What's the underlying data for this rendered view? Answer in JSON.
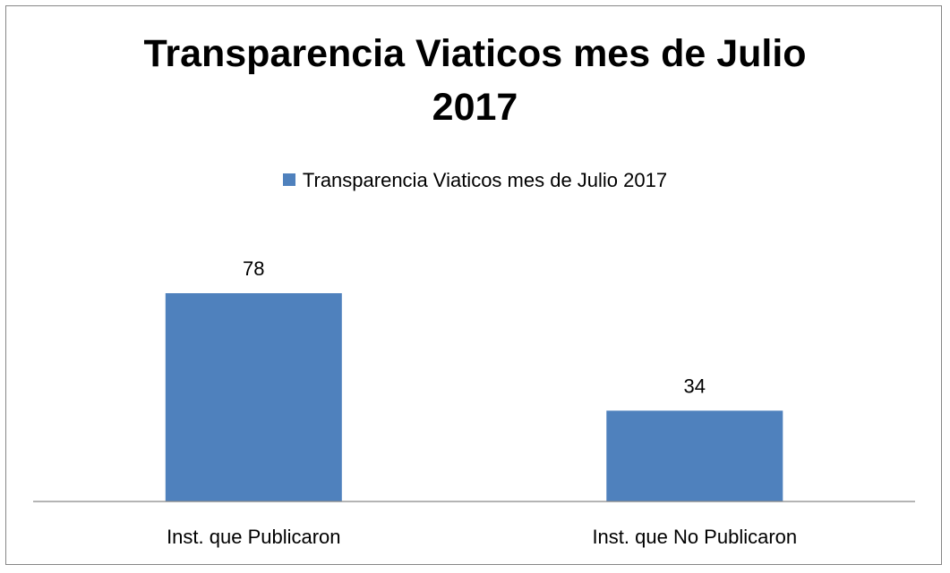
{
  "chart_data": {
    "type": "bar",
    "title": "Transparencia Viaticos mes de Julio 2017",
    "title_lines": [
      "Transparencia Viaticos mes de Julio",
      "2017"
    ],
    "categories": [
      "Inst. que Publicaron",
      "Inst. que No Publicaron"
    ],
    "series": [
      {
        "name": "Transparencia Viaticos mes de Julio 2017",
        "values": [
          78,
          34
        ],
        "color": "#4F81BD"
      }
    ],
    "data_labels": [
      "78",
      "34"
    ],
    "legend_position": "top",
    "grid": false,
    "y_axis_visible": false,
    "xlabel": "",
    "ylabel": ""
  }
}
